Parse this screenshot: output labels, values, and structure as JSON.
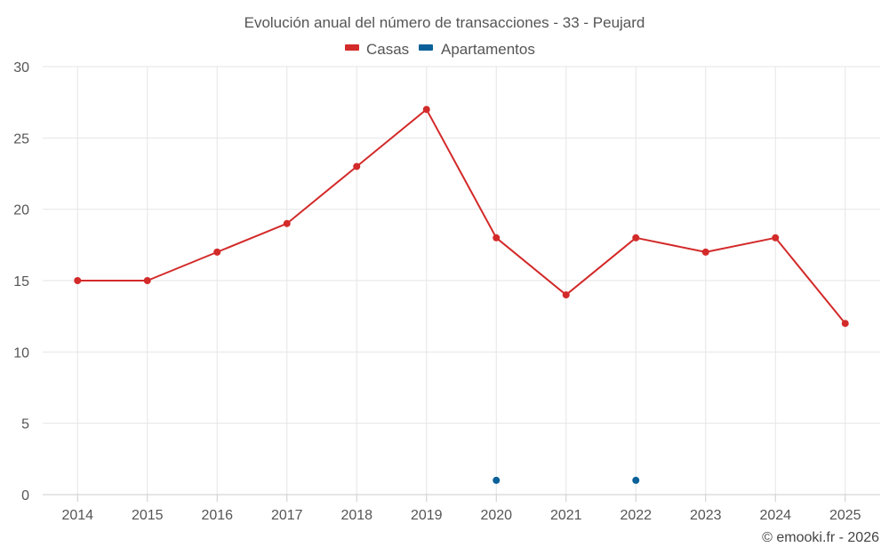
{
  "chart_data": {
    "type": "line",
    "title": "Evolución anual del número de transacciones - 33 - Peujard",
    "categories": [
      "2014",
      "2015",
      "2016",
      "2017",
      "2018",
      "2019",
      "2020",
      "2021",
      "2022",
      "2023",
      "2024",
      "2025"
    ],
    "series": [
      {
        "name": "Casas",
        "color": "#d32a2a",
        "values": [
          15,
          15,
          17,
          19,
          23,
          27,
          18,
          14,
          18,
          17,
          18,
          12
        ]
      },
      {
        "name": "Apartamentos",
        "color": "#0a6199",
        "values": [
          null,
          null,
          null,
          null,
          null,
          null,
          1,
          null,
          1,
          null,
          null,
          null
        ]
      }
    ],
    "ylim": [
      0,
      30
    ],
    "yticks": [
      0,
      5,
      10,
      15,
      20,
      25,
      30
    ],
    "xlabel": "",
    "ylabel": "",
    "grid": true,
    "legend": "top-center"
  },
  "credit": "© emooki.fr - 2026"
}
